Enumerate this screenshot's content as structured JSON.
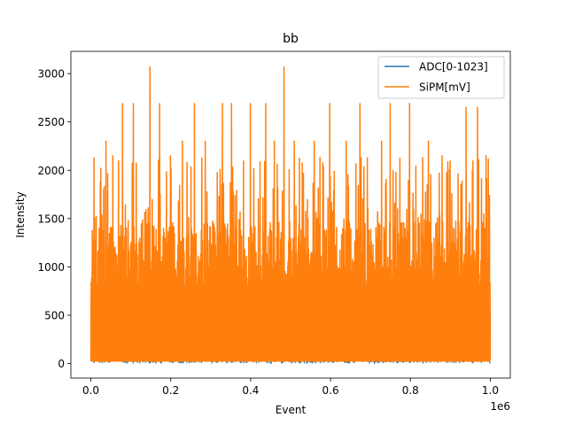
{
  "chart_data": {
    "type": "line",
    "title": "bb",
    "xlabel": "Event",
    "ylabel": "Intensity",
    "x_offset_label": "1e6",
    "xlim": [
      -50000,
      1050000
    ],
    "ylim": [
      -150,
      3230
    ],
    "x_ticks": [
      0,
      200000,
      400000,
      600000,
      800000,
      1000000
    ],
    "x_tick_labels": [
      "0.0",
      "0.2",
      "0.4",
      "0.6",
      "0.8",
      "1.0"
    ],
    "y_ticks": [
      0,
      500,
      1000,
      1500,
      2000,
      2500,
      3000
    ],
    "y_tick_labels": [
      "0",
      "500",
      "1000",
      "1500",
      "2000",
      "2500",
      "3000"
    ],
    "legend_position": "top-right",
    "series": [
      {
        "name": "ADC[0-1023]",
        "color": "#1f77b4",
        "x_range": [
          0,
          1000000
        ],
        "approx_max": 1023,
        "approx_min": 0
      },
      {
        "name": "SiPM[mV]",
        "color": "#ff7f0e",
        "x_range": [
          0,
          1000000
        ],
        "baseline": 20,
        "dense_band_max": 1480,
        "peaks": [
          {
            "x": 8000,
            "y": 2130
          },
          {
            "x": 13000,
            "y": 1520
          },
          {
            "x": 38000,
            "y": 2300
          },
          {
            "x": 55000,
            "y": 2150
          },
          {
            "x": 80000,
            "y": 2690
          },
          {
            "x": 107000,
            "y": 2690
          },
          {
            "x": 148000,
            "y": 3070
          },
          {
            "x": 172000,
            "y": 2690
          },
          {
            "x": 200000,
            "y": 2150
          },
          {
            "x": 230000,
            "y": 2300
          },
          {
            "x": 260000,
            "y": 2690
          },
          {
            "x": 286000,
            "y": 2300
          },
          {
            "x": 330000,
            "y": 2690
          },
          {
            "x": 352000,
            "y": 2690
          },
          {
            "x": 400000,
            "y": 2690
          },
          {
            "x": 438000,
            "y": 2690
          },
          {
            "x": 460000,
            "y": 2300
          },
          {
            "x": 483000,
            "y": 3070
          },
          {
            "x": 510000,
            "y": 2300
          },
          {
            "x": 560000,
            "y": 2300
          },
          {
            "x": 598000,
            "y": 2690
          },
          {
            "x": 640000,
            "y": 2300
          },
          {
            "x": 674000,
            "y": 2690
          },
          {
            "x": 728000,
            "y": 2300
          },
          {
            "x": 750000,
            "y": 2690
          },
          {
            "x": 798000,
            "y": 2690
          },
          {
            "x": 845000,
            "y": 2300
          },
          {
            "x": 880000,
            "y": 2150
          },
          {
            "x": 940000,
            "y": 2650
          },
          {
            "x": 968000,
            "y": 2650
          },
          {
            "x": 990000,
            "y": 2150
          }
        ]
      }
    ]
  }
}
